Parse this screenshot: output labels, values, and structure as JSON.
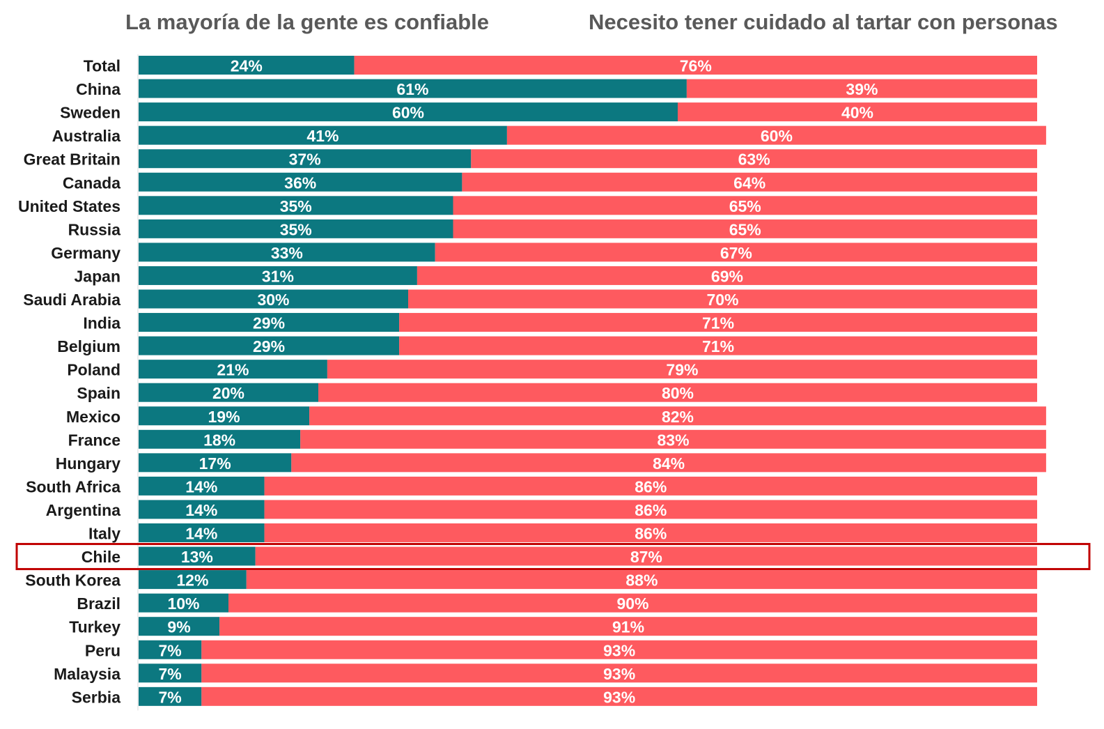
{
  "chart_data": {
    "type": "bar",
    "orientation": "horizontal",
    "stacked": true,
    "percent_stacked": true,
    "categories": [
      "Total",
      "China",
      "Sweden",
      "Australia",
      "Great Britain",
      "Canada",
      "United States",
      "Russia",
      "Germany",
      "Japan",
      "Saudi Arabia",
      "India",
      "Belgium",
      "Poland",
      "Spain",
      "Mexico",
      "France",
      "Hungary",
      "South Africa",
      "Argentina",
      "Italy",
      "Chile",
      "South Korea",
      "Brazil",
      "Turkey",
      "Peru",
      "Malaysia",
      "Serbia"
    ],
    "series": [
      {
        "name": "La mayoría de la gente es confiable",
        "color": "#0c7880",
        "values": [
          24,
          61,
          60,
          41,
          37,
          36,
          35,
          35,
          33,
          31,
          30,
          29,
          29,
          21,
          20,
          19,
          18,
          17,
          14,
          14,
          14,
          13,
          12,
          10,
          9,
          7,
          7,
          7
        ]
      },
      {
        "name": "Necesito tener cuidado al tartar con personas",
        "color": "#fe5a5f",
        "values": [
          76,
          39,
          40,
          60,
          63,
          64,
          65,
          65,
          67,
          69,
          70,
          71,
          71,
          79,
          80,
          82,
          83,
          84,
          86,
          86,
          86,
          87,
          88,
          90,
          91,
          93,
          93,
          93
        ]
      }
    ],
    "value_format": "percent",
    "xlim": [
      0,
      100
    ],
    "legend_position": "top",
    "highlight": {
      "category": "Chile",
      "outline_color": "#c00000"
    },
    "grid": false
  }
}
